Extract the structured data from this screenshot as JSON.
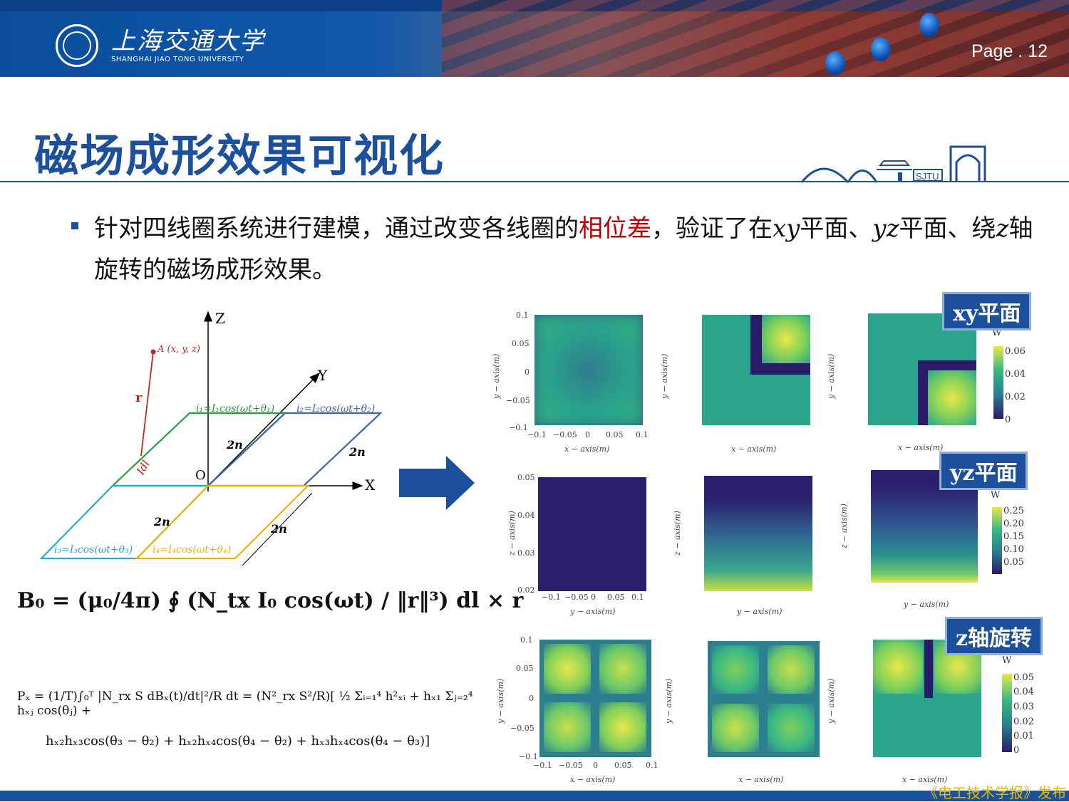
{
  "header": {
    "university_cn": "上海交通大学",
    "university_en": "SHANGHAI JIAO TONG UNIVERSITY",
    "page": "Page . 12",
    "logo_letters": "SJTU"
  },
  "title": "磁场成形效果可视化",
  "bullet": {
    "part1": "针对四线圈系统进行建模，通过改变各线圈的",
    "highlight": "相位差",
    "part2": "，验证了在",
    "xy": "xy",
    "part3": "平面、",
    "yz": "yz",
    "part4": "平面、绕",
    "z": "z",
    "part5": "轴旋转的磁场成形效果。"
  },
  "diagram": {
    "axis_z": "Z",
    "axis_y": "Y",
    "axis_x": "X",
    "origin": "O",
    "point_a": "A (x, y, z)",
    "r": "r",
    "dl": "Idl",
    "i1": "i₁=I₁cos(ωt+θ₁)",
    "i2": "i₂=I₂cos(ωt+θ₂)",
    "i3": "i₃=I₃cos(ωt+θ₃)",
    "i4": "i₄=I₄cos(ωt+θ₄)",
    "len_2n": "2n"
  },
  "formulas": {
    "b0": "B₀ = (μ₀/4π) ∮ (N_tx I₀ cos(ωt) / ‖r‖³) dl × r",
    "px_line1": "Pₓ = (1/T)∫₀ᵀ |N_rx S dBₓ(t)/dt|²/R dt = (N²_rx S²/R)[ ½ Σᵢ₌₁⁴ h²ₓᵢ + hₓ₁ Σⱼ₌₂⁴ hₓⱼ cos(θⱼ) +",
    "px_line2": "hₓ₂hₓ₃cos(θ₃ − θ₂) + hₓ₂hₓ₄cos(θ₄ − θ₂) + hₓ₃hₓ₄cos(θ₄ − θ₃)]"
  },
  "tags": {
    "xy": "xy平面",
    "yz": "yz平面",
    "z": "z轴旋转"
  },
  "plots": {
    "xy_ticks_y": [
      "0.1",
      "0.05",
      "0",
      "−0.05",
      "−0.1"
    ],
    "xy_ticks_x": [
      "−0.1",
      "−0.05",
      "0",
      "0.05",
      "0.1"
    ],
    "xy_xlabel": "x − axis(m)",
    "xy_ylabel": "y − axis(m)",
    "yz_ticks_y": [
      "0.05",
      "0.04",
      "0.03",
      "0.02"
    ],
    "yz_ticks_x": [
      "−0.1",
      "−0.05",
      "0",
      "0.05",
      "0.1"
    ],
    "yz_xlabel": "y − axis(m)",
    "yz_ylabel": "z − axis(m)",
    "colorbar_unit": "W",
    "cbar_xy": [
      "0.06",
      "0.04",
      "0.02",
      "0"
    ],
    "cbar_yz": [
      "0.25",
      "0.20",
      "0.15",
      "0.10",
      "0.05"
    ],
    "cbar_z": [
      "0.05",
      "0.04",
      "0.03",
      "0.02",
      "0.01",
      "0"
    ]
  },
  "footer": "《电工技术学报》发布",
  "colors": {
    "brand_blue": "#1c4f9c",
    "highlight_red": "#c00000",
    "viridis_low": "#2b1a6b",
    "viridis_mid": "#2a9d8f",
    "viridis_high": "#e8e84a"
  }
}
